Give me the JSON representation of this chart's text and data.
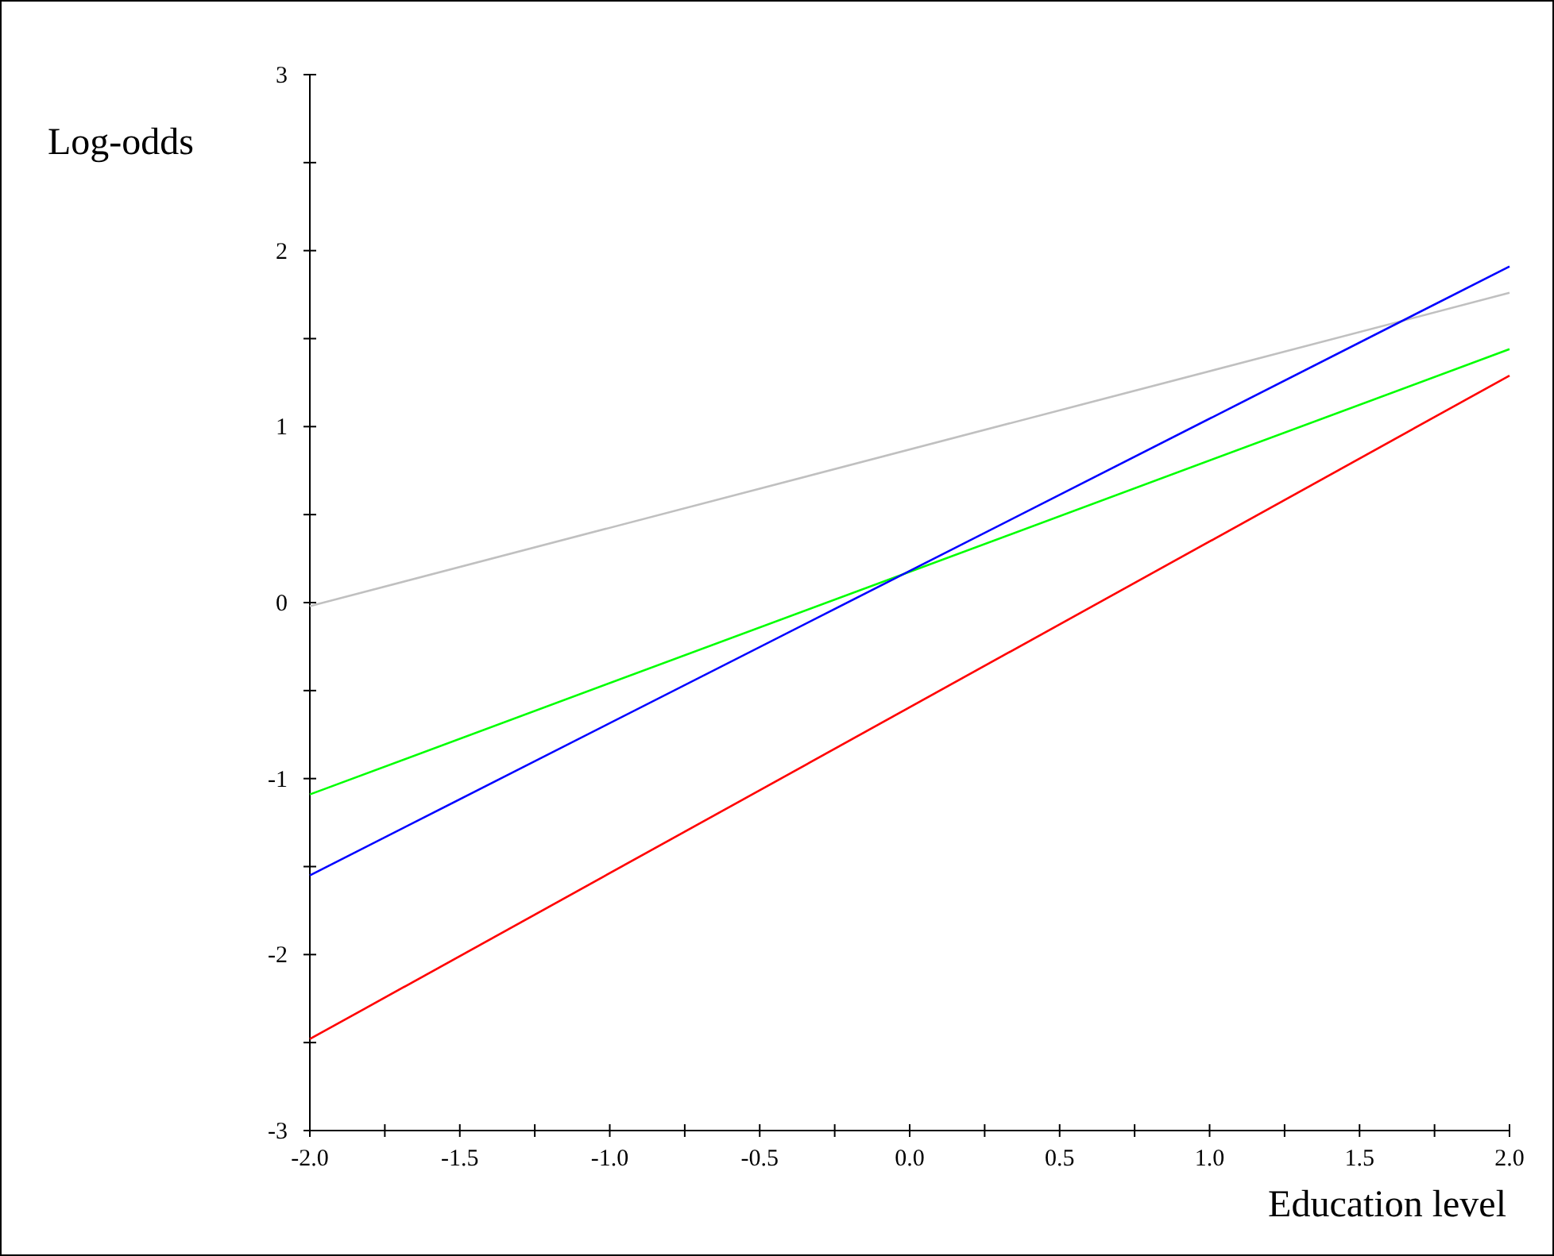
{
  "chart_data": {
    "type": "line",
    "xlabel": "Education level",
    "ylabel": "Log-odds",
    "x": [
      -2.0,
      2.0
    ],
    "series": [
      {
        "color": "#c0c0c0",
        "values": [
          -0.02,
          1.76
        ]
      },
      {
        "color": "#00ff00",
        "values": [
          -1.09,
          1.44
        ]
      },
      {
        "color": "#0000ff",
        "values": [
          -1.55,
          1.91
        ]
      },
      {
        "color": "#ff0000",
        "values": [
          -2.48,
          1.29
        ]
      }
    ],
    "xlim": [
      -2.0,
      2.0
    ],
    "ylim": [
      -3,
      3
    ],
    "xticks": [
      {
        "value": -2,
        "label": "-2.0"
      },
      {
        "value": -1.75,
        "label": null
      },
      {
        "value": -1.5,
        "label": "-1.5"
      },
      {
        "value": -1.25,
        "label": null
      },
      {
        "value": -1,
        "label": "-1.0"
      },
      {
        "value": -0.75,
        "label": null
      },
      {
        "value": -0.5,
        "label": "-0.5"
      },
      {
        "value": -0.25,
        "label": null
      },
      {
        "value": 0,
        "label": "0.0"
      },
      {
        "value": 0.25,
        "label": null
      },
      {
        "value": 0.5,
        "label": "0.5"
      },
      {
        "value": 0.75,
        "label": null
      },
      {
        "value": 1,
        "label": "1.0"
      },
      {
        "value": 1.25,
        "label": null
      },
      {
        "value": 1.5,
        "label": "1.5"
      },
      {
        "value": 1.75,
        "label": null
      },
      {
        "value": 2,
        "label": "2.0"
      }
    ],
    "yticks": [
      -3,
      {
        "value": -2.5,
        "label": null
      },
      -2,
      {
        "value": -1.5,
        "label": null
      },
      -1,
      {
        "value": -0.5,
        "label": null
      },
      0,
      {
        "value": 0.5,
        "label": null
      },
      1,
      {
        "value": 1.5,
        "label": null
      },
      2,
      {
        "value": 2.5,
        "label": null
      },
      3
    ],
    "grid": false,
    "marker": "none",
    "line_style": "solid"
  }
}
